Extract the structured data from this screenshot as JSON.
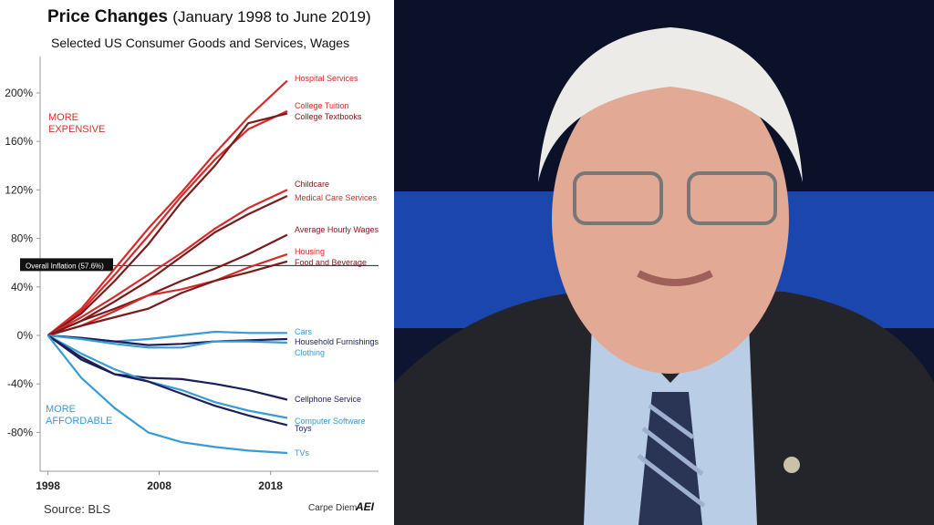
{
  "chart_data": {
    "type": "line",
    "title": "Price Changes",
    "title_detail": "(January 1998 to June 2019)",
    "subtitle": "Selected US Consumer Goods and Services, Wages",
    "source": "Source: BLS",
    "credit": "Carpe Diem",
    "logo": "AEI",
    "annotations": [
      {
        "lines": [
          "MORE",
          "EXPENSIVE"
        ],
        "color": "#d0312d"
      },
      {
        "lines": [
          "MORE",
          "AFFORDABLE"
        ],
        "color": "#3a9ad4"
      }
    ],
    "reference_line": {
      "value": 57.6,
      "label": "Overall Inflation (57.6%)"
    },
    "x": [
      1998,
      2001,
      2004,
      2007,
      2010,
      2013,
      2016,
      2019.5
    ],
    "xlim": [
      1997.3,
      2027.7
    ],
    "xticks": [
      1998,
      2008,
      2018
    ],
    "ylim": [
      -112,
      230
    ],
    "yticks": [
      {
        "value": -80,
        "label": "-80%"
      },
      {
        "value": -40,
        "label": "-40%"
      },
      {
        "value": 0,
        "label": "0%"
      },
      {
        "value": 40,
        "label": "40%"
      },
      {
        "value": 80,
        "label": "80%"
      },
      {
        "value": 120,
        "label": "120%"
      },
      {
        "value": 160,
        "label": "160%"
      },
      {
        "value": 200,
        "label": "200%"
      }
    ],
    "series": [
      {
        "name": "Hospital Services",
        "color": "#d62a2a",
        "values": [
          0,
          22,
          55,
          88,
          118,
          150,
          180,
          210
        ]
      },
      {
        "name": "College Tuition",
        "color": "#d62a2a",
        "values": [
          0,
          20,
          50,
          82,
          115,
          145,
          170,
          185
        ]
      },
      {
        "name": "College Textbooks",
        "color": "#7a1a1a",
        "values": [
          0,
          18,
          45,
          75,
          110,
          140,
          175,
          183
        ]
      },
      {
        "name": "Childcare",
        "color": "#7a1a1a",
        "values": [
          0,
          12,
          28,
          45,
          65,
          85,
          100,
          115
        ]
      },
      {
        "name": "Medical Care Services",
        "color": "#d62a2a",
        "values": [
          0,
          15,
          32,
          50,
          68,
          88,
          105,
          120
        ]
      },
      {
        "name": "Average Hourly Wages",
        "color": "#7a1a1a",
        "values": [
          0,
          12,
          22,
          33,
          45,
          55,
          67,
          83
        ]
      },
      {
        "name": "Housing",
        "color": "#d62a2a",
        "values": [
          0,
          8,
          20,
          33,
          38,
          45,
          56,
          67
        ]
      },
      {
        "name": "Food and Beverage",
        "color": "#7a1a1a",
        "values": [
          0,
          8,
          15,
          22,
          35,
          45,
          52,
          61
        ]
      },
      {
        "name": "Cars",
        "color": "#3a9ad4",
        "values": [
          0,
          -2,
          -5,
          -3,
          0,
          3,
          2,
          2
        ]
      },
      {
        "name": "Household Furnishings",
        "color": "#1a1f5c",
        "values": [
          0,
          -2,
          -5,
          -8,
          -7,
          -5,
          -4,
          -3
        ]
      },
      {
        "name": "Clothing",
        "color": "#3a9ad4",
        "values": [
          0,
          -3,
          -7,
          -10,
          -10,
          -5,
          -5,
          -6
        ]
      },
      {
        "name": "Cellphone Service",
        "color": "#1a1f5c",
        "values": [
          0,
          -20,
          -32,
          -35,
          -36,
          -40,
          -45,
          -53
        ]
      },
      {
        "name": "Computer Software",
        "color": "#3a9ad4",
        "values": [
          0,
          -15,
          -28,
          -38,
          -45,
          -55,
          -62,
          -68
        ]
      },
      {
        "name": "Toys",
        "color": "#1a1f5c",
        "values": [
          0,
          -18,
          -32,
          -38,
          -48,
          -58,
          -66,
          -74
        ]
      },
      {
        "name": "TVs",
        "color": "#3a9ad4",
        "values": [
          0,
          -35,
          -60,
          -80,
          -88,
          -92,
          -95,
          -97
        ]
      }
    ]
  }
}
